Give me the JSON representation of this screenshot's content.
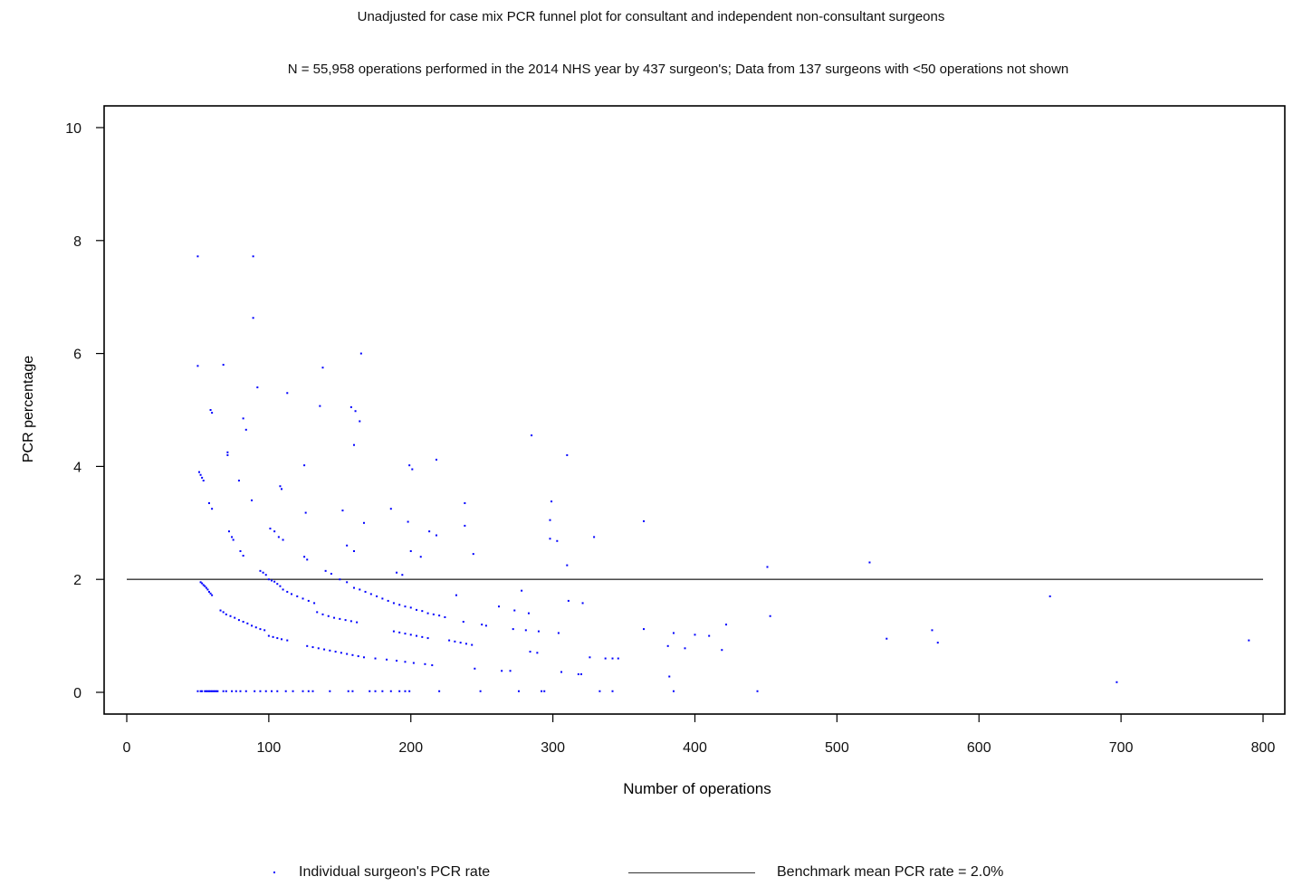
{
  "chart_data": {
    "type": "scatter",
    "title": "Unadjusted for case mix PCR funnel plot for consultant and independent non-consultant surgeons",
    "subtitle": "N = 55,958 operations performed in the 2014 NHS year by 437 surgeon's; Data from 137 surgeons with <50 operations not shown",
    "xlabel": "Number of operations",
    "ylabel": "PCR percentage",
    "xlim": [
      0,
      820
    ],
    "ylim": [
      -0.4,
      10.4
    ],
    "xticks": [
      0,
      100,
      200,
      300,
      400,
      500,
      600,
      700,
      800
    ],
    "yticks": [
      0,
      2,
      4,
      6,
      8,
      10
    ],
    "benchmark": 2.0,
    "grid": false,
    "legend_position": "bottom",
    "colors": {
      "points": "#0000ff",
      "benchmark": "#333333"
    },
    "series": [
      {
        "name": "Individual surgeon's PCR rate",
        "points": [
          [
            50,
            7.72
          ],
          [
            89,
            7.72
          ],
          [
            89,
            6.63
          ],
          [
            50,
            5.78
          ],
          [
            68,
            5.8
          ],
          [
            138,
            5.75
          ],
          [
            165,
            6.0
          ],
          [
            92,
            5.4
          ],
          [
            113,
            5.3
          ],
          [
            136,
            5.07
          ],
          [
            158,
            5.05
          ],
          [
            161,
            4.98
          ],
          [
            164,
            4.8
          ],
          [
            160,
            4.38
          ],
          [
            59,
            5.0
          ],
          [
            60,
            4.95
          ],
          [
            82,
            4.85
          ],
          [
            84,
            4.65
          ],
          [
            71,
            4.25
          ],
          [
            71,
            4.2
          ],
          [
            125,
            4.02
          ],
          [
            199,
            4.02
          ],
          [
            201,
            3.95
          ],
          [
            218,
            4.12
          ],
          [
            285,
            4.55
          ],
          [
            310,
            4.2
          ],
          [
            51,
            3.9
          ],
          [
            52,
            3.85
          ],
          [
            53,
            3.8
          ],
          [
            54,
            3.75
          ],
          [
            79,
            3.75
          ],
          [
            108,
            3.65
          ],
          [
            109,
            3.6
          ],
          [
            88,
            3.4
          ],
          [
            58,
            3.35
          ],
          [
            60,
            3.25
          ],
          [
            126,
            3.18
          ],
          [
            152,
            3.22
          ],
          [
            167,
            3.0
          ],
          [
            186,
            3.25
          ],
          [
            238,
            3.35
          ],
          [
            299,
            3.38
          ],
          [
            364,
            3.03
          ],
          [
            298,
            3.05
          ],
          [
            238,
            2.95
          ],
          [
            198,
            3.02
          ],
          [
            213,
            2.85
          ],
          [
            218,
            2.78
          ],
          [
            72,
            2.85
          ],
          [
            74,
            2.75
          ],
          [
            75,
            2.7
          ],
          [
            101,
            2.9
          ],
          [
            104,
            2.85
          ],
          [
            107,
            2.75
          ],
          [
            110,
            2.7
          ],
          [
            155,
            2.6
          ],
          [
            160,
            2.5
          ],
          [
            200,
            2.5
          ],
          [
            207,
            2.4
          ],
          [
            244,
            2.45
          ],
          [
            298,
            2.72
          ],
          [
            303,
            2.68
          ],
          [
            329,
            2.75
          ],
          [
            80,
            2.5
          ],
          [
            82,
            2.42
          ],
          [
            125,
            2.4
          ],
          [
            127,
            2.35
          ],
          [
            310,
            2.25
          ],
          [
            451,
            2.22
          ],
          [
            523,
            2.3
          ],
          [
            94,
            2.15
          ],
          [
            96,
            2.12
          ],
          [
            98,
            2.08
          ],
          [
            140,
            2.15
          ],
          [
            144,
            2.1
          ],
          [
            190,
            2.12
          ],
          [
            194,
            2.08
          ],
          [
            52,
            1.95
          ],
          [
            53,
            1.93
          ],
          [
            54,
            1.9
          ],
          [
            55,
            1.88
          ],
          [
            56,
            1.85
          ],
          [
            57,
            1.82
          ],
          [
            58,
            1.78
          ],
          [
            59,
            1.75
          ],
          [
            60,
            1.72
          ],
          [
            100,
            2.0
          ],
          [
            102,
            1.98
          ],
          [
            104,
            1.96
          ],
          [
            106,
            1.92
          ],
          [
            108,
            1.88
          ],
          [
            110,
            1.82
          ],
          [
            113,
            1.78
          ],
          [
            116,
            1.74
          ],
          [
            120,
            1.7
          ],
          [
            124,
            1.66
          ],
          [
            128,
            1.62
          ],
          [
            132,
            1.58
          ],
          [
            150,
            2.0
          ],
          [
            155,
            1.95
          ],
          [
            160,
            1.85
          ],
          [
            164,
            1.82
          ],
          [
            168,
            1.78
          ],
          [
            172,
            1.74
          ],
          [
            176,
            1.7
          ],
          [
            180,
            1.66
          ],
          [
            184,
            1.62
          ],
          [
            188,
            1.58
          ],
          [
            192,
            1.55
          ],
          [
            196,
            1.52
          ],
          [
            200,
            1.5
          ],
          [
            204,
            1.46
          ],
          [
            208,
            1.44
          ],
          [
            212,
            1.4
          ],
          [
            216,
            1.38
          ],
          [
            220,
            1.36
          ],
          [
            224,
            1.33
          ],
          [
            232,
            1.72
          ],
          [
            262,
            1.52
          ],
          [
            273,
            1.45
          ],
          [
            278,
            1.8
          ],
          [
            283,
            1.4
          ],
          [
            311,
            1.62
          ],
          [
            321,
            1.58
          ],
          [
            650,
            1.7
          ],
          [
            66,
            1.45
          ],
          [
            68,
            1.42
          ],
          [
            70,
            1.38
          ],
          [
            73,
            1.35
          ],
          [
            76,
            1.32
          ],
          [
            79,
            1.28
          ],
          [
            82,
            1.25
          ],
          [
            85,
            1.22
          ],
          [
            88,
            1.18
          ],
          [
            91,
            1.15
          ],
          [
            94,
            1.12
          ],
          [
            97,
            1.1
          ],
          [
            134,
            1.42
          ],
          [
            138,
            1.38
          ],
          [
            142,
            1.35
          ],
          [
            146,
            1.32
          ],
          [
            150,
            1.3
          ],
          [
            154,
            1.28
          ],
          [
            158,
            1.26
          ],
          [
            162,
            1.24
          ],
          [
            237,
            1.25
          ],
          [
            250,
            1.2
          ],
          [
            253,
            1.18
          ],
          [
            272,
            1.12
          ],
          [
            281,
            1.1
          ],
          [
            290,
            1.08
          ],
          [
            304,
            1.05
          ],
          [
            364,
            1.12
          ],
          [
            385,
            1.05
          ],
          [
            400,
            1.02
          ],
          [
            410,
            1.0
          ],
          [
            422,
            1.2
          ],
          [
            453,
            1.35
          ],
          [
            567,
            1.1
          ],
          [
            100,
            1.0
          ],
          [
            103,
            0.98
          ],
          [
            106,
            0.96
          ],
          [
            109,
            0.94
          ],
          [
            113,
            0.92
          ],
          [
            188,
            1.08
          ],
          [
            192,
            1.06
          ],
          [
            196,
            1.04
          ],
          [
            200,
            1.02
          ],
          [
            204,
            1.0
          ],
          [
            208,
            0.98
          ],
          [
            212,
            0.96
          ],
          [
            227,
            0.92
          ],
          [
            231,
            0.9
          ],
          [
            235,
            0.88
          ],
          [
            239,
            0.86
          ],
          [
            243,
            0.84
          ],
          [
            284,
            0.72
          ],
          [
            289,
            0.7
          ],
          [
            381,
            0.82
          ],
          [
            393,
            0.78
          ],
          [
            419,
            0.75
          ],
          [
            535,
            0.95
          ],
          [
            571,
            0.88
          ],
          [
            790,
            0.92
          ],
          [
            127,
            0.82
          ],
          [
            131,
            0.8
          ],
          [
            135,
            0.78
          ],
          [
            139,
            0.76
          ],
          [
            143,
            0.74
          ],
          [
            147,
            0.72
          ],
          [
            151,
            0.7
          ],
          [
            155,
            0.68
          ],
          [
            159,
            0.66
          ],
          [
            163,
            0.64
          ],
          [
            167,
            0.62
          ],
          [
            175,
            0.6
          ],
          [
            183,
            0.58
          ],
          [
            190,
            0.56
          ],
          [
            196,
            0.54
          ],
          [
            202,
            0.52
          ],
          [
            210,
            0.5
          ],
          [
            215,
            0.48
          ],
          [
            326,
            0.62
          ],
          [
            337,
            0.6
          ],
          [
            342,
            0.6
          ],
          [
            346,
            0.6
          ],
          [
            245,
            0.42
          ],
          [
            264,
            0.38
          ],
          [
            270,
            0.38
          ],
          [
            306,
            0.36
          ],
          [
            318,
            0.32
          ],
          [
            320,
            0.32
          ],
          [
            382,
            0.28
          ],
          [
            697,
            0.18
          ],
          [
            50,
            0.02
          ],
          [
            52,
            0.02
          ],
          [
            53,
            0.02
          ],
          [
            55,
            0.02
          ],
          [
            56,
            0.02
          ],
          [
            57,
            0.02
          ],
          [
            58,
            0.02
          ],
          [
            59,
            0.02
          ],
          [
            60,
            0.02
          ],
          [
            61,
            0.02
          ],
          [
            62,
            0.02
          ],
          [
            63,
            0.02
          ],
          [
            64,
            0.02
          ],
          [
            68,
            0.02
          ],
          [
            70,
            0.02
          ],
          [
            74,
            0.02
          ],
          [
            77,
            0.02
          ],
          [
            80,
            0.02
          ],
          [
            84,
            0.02
          ],
          [
            90,
            0.02
          ],
          [
            94,
            0.02
          ],
          [
            98,
            0.02
          ],
          [
            102,
            0.02
          ],
          [
            106,
            0.02
          ],
          [
            112,
            0.02
          ],
          [
            117,
            0.02
          ],
          [
            124,
            0.02
          ],
          [
            128,
            0.02
          ],
          [
            131,
            0.02
          ],
          [
            143,
            0.02
          ],
          [
            156,
            0.02
          ],
          [
            159,
            0.02
          ],
          [
            171,
            0.02
          ],
          [
            175,
            0.02
          ],
          [
            180,
            0.02
          ],
          [
            186,
            0.02
          ],
          [
            192,
            0.02
          ],
          [
            196,
            0.02
          ],
          [
            199,
            0.02
          ],
          [
            220,
            0.02
          ],
          [
            249,
            0.02
          ],
          [
            276,
            0.02
          ],
          [
            292,
            0.02
          ],
          [
            294,
            0.02
          ],
          [
            333,
            0.02
          ],
          [
            342,
            0.02
          ],
          [
            385,
            0.02
          ],
          [
            444,
            0.02
          ]
        ]
      },
      {
        "name": "Benchmark mean PCR rate = 2.0%",
        "values": [
          2.0
        ]
      }
    ]
  }
}
